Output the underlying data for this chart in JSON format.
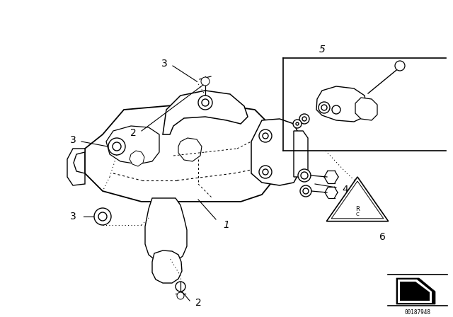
{
  "background_color": "#ffffff",
  "image_id": "00187948",
  "fig_w": 6.4,
  "fig_h": 4.48,
  "dpi": 100,
  "label_fontsize": 10,
  "label_italic_fontsize": 10
}
